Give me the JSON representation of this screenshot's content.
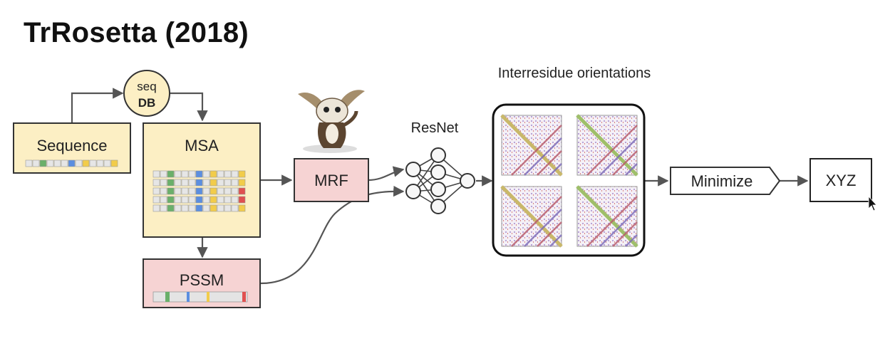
{
  "title": "TrRosetta (2018)",
  "nodes": {
    "seq_db": {
      "line1": "seq",
      "line2": "DB"
    },
    "sequence": "Sequence",
    "msa": "MSA",
    "mrf": "MRF",
    "pssm": "PSSM",
    "resnet": "ResNet",
    "orientations": "Interresidue orientations",
    "minimize": "Minimize",
    "xyz": "XYZ"
  },
  "colors": {
    "yellow_fill": "#fcefc4",
    "pink_fill": "#f6d3d3",
    "seq_db_fill": "#fcefc4",
    "green": "#6ab06a",
    "blue": "#5b8ee0",
    "yellow": "#f2cc4a",
    "red": "#e05050",
    "arrow": "#555555"
  },
  "decorations": {
    "mascot": "gremlin-mascot-image",
    "contact_maps": "four interresidue orientation heatmaps"
  }
}
